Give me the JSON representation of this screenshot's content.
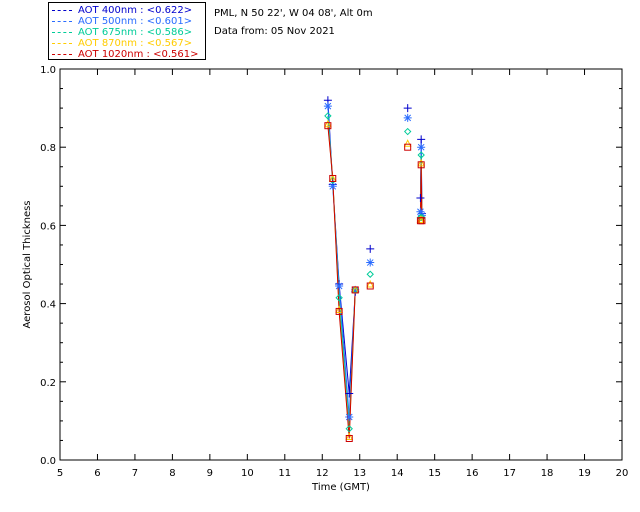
{
  "header": {
    "location": "PML, N 50 22', W 04 08', Alt 0m",
    "date": "Data from: 05 Nov 2021"
  },
  "legend": [
    {
      "label": "AOT  400nm : <0.622>",
      "color": "#0000cc"
    },
    {
      "label": "AOT  500nm : <0.601>",
      "color": "#2a6cff"
    },
    {
      "label": "AOT  675nm : <0.586>",
      "color": "#00cc99"
    },
    {
      "label": "AOT  870nm : <0.567>",
      "color": "#ffcc00"
    },
    {
      "label": "AOT 1020nm : <0.561>",
      "color": "#cc0000"
    }
  ],
  "chart_data": {
    "type": "scatter",
    "xlabel": "Time (GMT)",
    "ylabel": "Aerosol Optical Thickness",
    "xlim": [
      5,
      20
    ],
    "ylim": [
      0,
      1
    ],
    "xticks": [
      "5",
      "6",
      "7",
      "8",
      "9",
      "10",
      "11",
      "12",
      "13",
      "14",
      "15",
      "16",
      "17",
      "18",
      "19",
      "20"
    ],
    "yticks": [
      "0.0",
      "0.2",
      "0.4",
      "0.6",
      "0.8",
      "1.0"
    ],
    "series": [
      {
        "name": "AOT  400nm : <0.622>",
        "color": "#0000cc",
        "marker": "plus",
        "x": [
          12.15,
          12.28,
          12.45,
          12.72,
          12.88,
          13.28,
          14.28,
          14.62,
          14.64,
          14.66
        ],
        "y": [
          0.92,
          0.705,
          0.45,
          0.17,
          0.43,
          0.54,
          0.9,
          0.67,
          0.82,
          0.63
        ]
      },
      {
        "name": "AOT  500nm : <0.601>",
        "color": "#2a6cff",
        "marker": "asterisk",
        "x": [
          12.15,
          12.28,
          12.45,
          12.72,
          12.88,
          13.28,
          14.28,
          14.62,
          14.64,
          14.66
        ],
        "y": [
          0.905,
          0.7,
          0.445,
          0.11,
          0.435,
          0.505,
          0.875,
          0.635,
          0.8,
          0.625
        ]
      },
      {
        "name": "AOT  675nm : <0.586>",
        "color": "#00cc99",
        "marker": "diamond",
        "x": [
          12.15,
          12.28,
          12.45,
          12.72,
          12.88,
          13.28,
          14.28,
          14.62,
          14.64,
          14.66
        ],
        "y": [
          0.88,
          0.715,
          0.415,
          0.08,
          0.435,
          0.475,
          0.84,
          0.62,
          0.78,
          0.62
        ]
      },
      {
        "name": "AOT  870nm : <0.567>",
        "color": "#ffcc00",
        "marker": "triangle",
        "x": [
          12.15,
          12.28,
          12.45,
          12.72,
          12.88,
          13.28,
          14.28,
          14.62,
          14.64,
          14.66
        ],
        "y": [
          0.86,
          0.72,
          0.385,
          0.06,
          0.435,
          0.45,
          0.81,
          0.615,
          0.76,
          0.615
        ]
      },
      {
        "name": "AOT 1020nm : <0.561>",
        "color": "#cc0000",
        "marker": "square",
        "x": [
          12.15,
          12.28,
          12.45,
          12.72,
          12.88,
          13.28,
          14.28,
          14.62,
          14.64,
          14.66
        ],
        "y": [
          0.855,
          0.72,
          0.38,
          0.055,
          0.435,
          0.445,
          0.8,
          0.612,
          0.755,
          0.612
        ]
      }
    ]
  }
}
